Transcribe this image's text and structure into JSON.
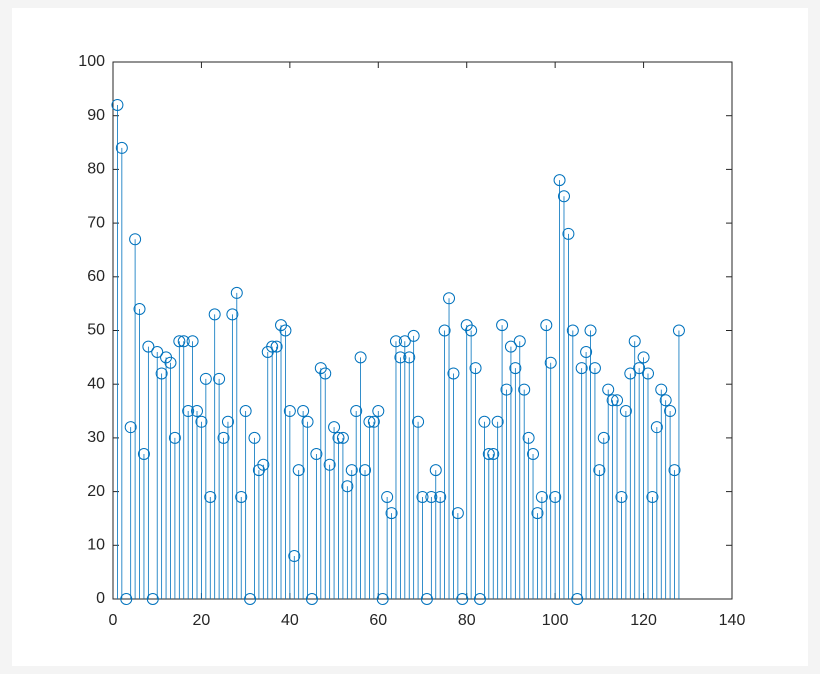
{
  "chart_data": {
    "type": "stem",
    "color": "#0072bd",
    "x": [
      1,
      2,
      3,
      4,
      5,
      6,
      7,
      8,
      9,
      10,
      11,
      12,
      13,
      14,
      15,
      16,
      17,
      18,
      19,
      20,
      21,
      22,
      23,
      24,
      25,
      26,
      27,
      28,
      29,
      30,
      31,
      32,
      33,
      34,
      35,
      36,
      37,
      38,
      39,
      40,
      41,
      42,
      43,
      44,
      45,
      46,
      47,
      48,
      49,
      50,
      51,
      52,
      53,
      54,
      55,
      56,
      57,
      58,
      59,
      60,
      61,
      62,
      63,
      64,
      65,
      66,
      67,
      68,
      69,
      70,
      71,
      72,
      73,
      74,
      75,
      76,
      77,
      78,
      79,
      80,
      81,
      82,
      83,
      84,
      85,
      86,
      87,
      88,
      89,
      90,
      91,
      92,
      93,
      94,
      95,
      96,
      97,
      98,
      99,
      100,
      101,
      102,
      103,
      104,
      105,
      106,
      107,
      108,
      109,
      110,
      111,
      112,
      113,
      114,
      115,
      116,
      117,
      118,
      119,
      120,
      121,
      122,
      123,
      124,
      125,
      126,
      127,
      128
    ],
    "values": [
      92,
      84,
      0,
      32,
      67,
      54,
      27,
      47,
      0,
      46,
      42,
      45,
      44,
      30,
      48,
      48,
      35,
      48,
      35,
      33,
      41,
      19,
      53,
      41,
      30,
      33,
      53,
      57,
      19,
      35,
      0,
      30,
      24,
      25,
      46,
      47,
      47,
      51,
      50,
      35,
      8,
      24,
      35,
      33,
      0,
      27,
      43,
      42,
      25,
      32,
      30,
      30,
      21,
      24,
      35,
      45,
      24,
      33,
      33,
      35,
      0,
      19,
      16,
      48,
      45,
      48,
      45,
      49,
      33,
      19,
      0,
      19,
      24,
      19,
      50,
      56,
      42,
      16,
      0,
      51,
      50,
      43,
      0,
      33,
      27,
      27,
      33,
      51,
      39,
      47,
      43,
      48,
      39,
      30,
      27,
      16,
      19,
      51,
      44,
      19,
      78,
      75,
      68,
      50,
      0,
      43,
      46,
      50,
      43,
      24,
      30,
      39,
      37,
      37,
      19,
      35,
      42,
      48,
      43,
      45,
      42,
      19,
      32,
      39,
      37,
      35,
      24,
      50
    ],
    "xlim": [
      0,
      140
    ],
    "xticks": [
      0,
      20,
      40,
      60,
      80,
      100,
      120,
      140
    ],
    "ylim": [
      0,
      100
    ],
    "yticks": [
      0,
      10,
      20,
      30,
      40,
      50,
      60,
      70,
      80,
      90,
      100
    ]
  }
}
